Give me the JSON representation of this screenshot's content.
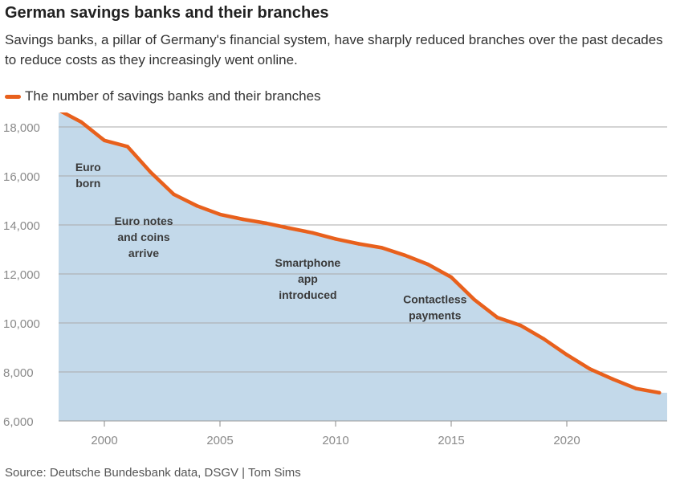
{
  "title": "German savings banks and their branches",
  "subtitle": "Savings banks, a pillar of Germany's financial system, have sharply reduced branches over the past decades to reduce costs as they increasingly went online.",
  "source": "Source: Deutsche Bundesbank data, DSGV | Tom Sims",
  "chart_data": {
    "type": "area",
    "title": "German savings banks and their branches",
    "series": [
      {
        "name": "The number of savings banks and their branches",
        "color": "#e8601c",
        "fill": "#c3d9ea",
        "x": [
          1998,
          1999,
          2000,
          2001,
          2002,
          2003,
          2004,
          2005,
          2006,
          2007,
          2008,
          2009,
          2010,
          2011,
          2012,
          2013,
          2014,
          2015,
          2016,
          2017,
          2018,
          2019,
          2020,
          2021,
          2022,
          2023,
          2024
        ],
        "values": [
          18700,
          18200,
          17450,
          17200,
          16150,
          15250,
          14780,
          14430,
          14230,
          14070,
          13870,
          13680,
          13430,
          13230,
          13070,
          12760,
          12390,
          11870,
          10950,
          10220,
          9900,
          9350,
          8700,
          8120,
          7700,
          7320,
          7150
        ]
      }
    ],
    "xlim": [
      1997.8,
      2024.2
    ],
    "ylim": [
      6000,
      18700
    ],
    "xticks": [
      2000,
      2005,
      2010,
      2015,
      2020
    ],
    "yticks": [
      6000,
      8000,
      10000,
      12000,
      14000,
      16000,
      18000
    ],
    "ytick_labels": [
      "6,000",
      "8,000",
      "10,000",
      "12,000",
      "14,000",
      "16,000",
      "18,000"
    ],
    "grid": "horizontal",
    "legend": "top-left",
    "annotations": [
      {
        "lines": [
          "Euro",
          "born"
        ],
        "x": 1999.3,
        "y": 16200
      },
      {
        "lines": [
          "Euro notes",
          "and coins",
          "arrive"
        ],
        "x": 2001.7,
        "y": 14000
      },
      {
        "lines": [
          "Smartphone",
          "app",
          "introduced"
        ],
        "x": 2008.8,
        "y": 12300
      },
      {
        "lines": [
          "Contactless",
          "payments"
        ],
        "x": 2014.3,
        "y": 10800
      }
    ]
  }
}
